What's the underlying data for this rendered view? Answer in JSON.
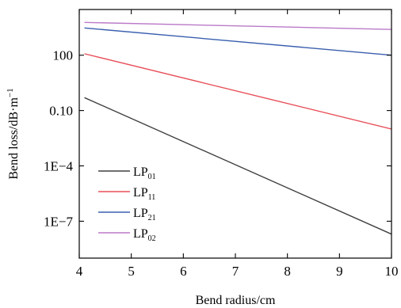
{
  "chart_data": {
    "type": "line",
    "xlabel": "Bend radius/cm",
    "ylabel": "Bend loss/dB·m",
    "ylabel_sup": "−1",
    "x_scale": "linear",
    "y_scale": "log",
    "xlim": [
      4,
      10
    ],
    "ylim": [
      1e-09,
      30000
    ],
    "x_ticks": [
      4,
      5,
      6,
      7,
      8,
      9,
      10
    ],
    "x_tick_labels": [
      "4",
      "5",
      "6",
      "7",
      "8",
      "9",
      "10"
    ],
    "y_ticks": [
      1e-07,
      0.0001,
      0.1,
      100
    ],
    "y_tick_labels": [
      "1E−7",
      "1E−4",
      "0.10",
      "100"
    ],
    "grid": false,
    "legend_position": "bottom-left",
    "series": [
      {
        "name": "LP",
        "name_sub": "01",
        "color": "#404040",
        "x": [
          4.1,
          10
        ],
        "y": [
          0.5,
          2e-08
        ]
      },
      {
        "name": "LP",
        "name_sub": "11",
        "color": "#e8505a",
        "x": [
          4.1,
          10
        ],
        "y": [
          120,
          0.01
        ]
      },
      {
        "name": "LP",
        "name_sub": "21",
        "color": "#3a5fae",
        "x": [
          4.1,
          10
        ],
        "y": [
          3000,
          100
        ]
      },
      {
        "name": "LP",
        "name_sub": "02",
        "color": "#bb7ac8",
        "x": [
          4.1,
          10
        ],
        "y": [
          6000,
          2500
        ]
      }
    ]
  }
}
